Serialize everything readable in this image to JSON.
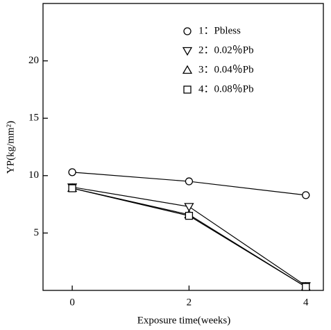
{
  "chart_data": {
    "type": "line",
    "x": [
      0,
      2,
      4
    ],
    "xlabel": "Exposure time(weeks)",
    "ylabel": "YP(kg/mm²)",
    "xlim": [
      -0.5,
      4.3
    ],
    "xticks": [
      0,
      2,
      4
    ],
    "ylim": [
      0,
      25
    ],
    "yticks": [
      5,
      10,
      15,
      20
    ],
    "grid": false,
    "legend": "upper right",
    "series": [
      {
        "name": "1：Pbless",
        "color": "#000000",
        "marker": "circle",
        "values": [
          10.3,
          9.5,
          8.3
        ]
      },
      {
        "name": "2：0.02％Pb",
        "color": "#000000",
        "marker": "triangle-down",
        "values": [
          9.0,
          7.3,
          0.4
        ]
      },
      {
        "name": "3：0.04％Pb",
        "color": "#000000",
        "marker": "triangle-up",
        "values": [
          8.9,
          6.6,
          0.3
        ]
      },
      {
        "name": "4：0.08％Pb",
        "color": "#000000",
        "marker": "square",
        "values": [
          8.9,
          6.5,
          0.3
        ]
      }
    ]
  }
}
